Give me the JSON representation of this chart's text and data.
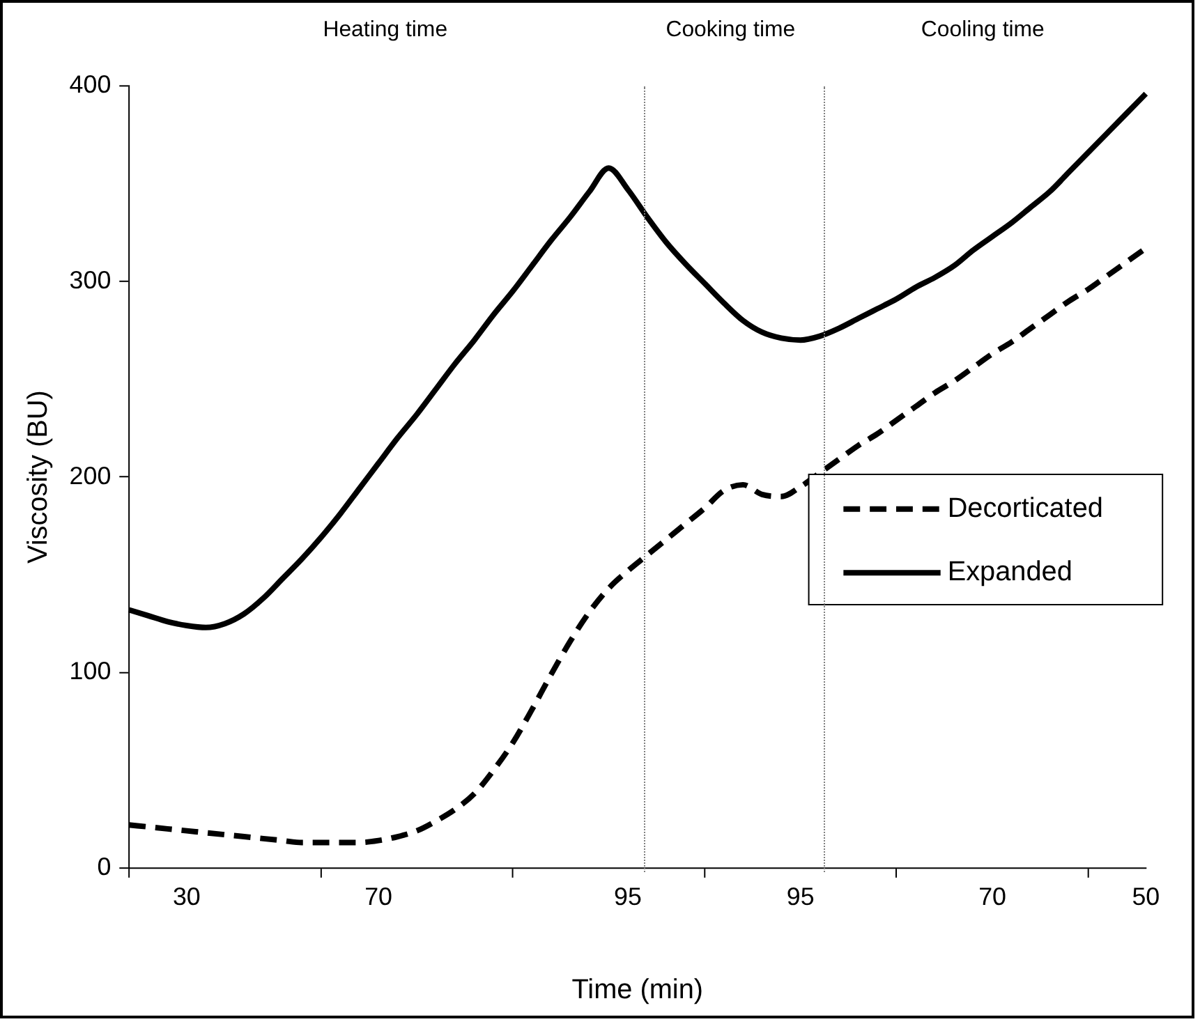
{
  "chart_data": {
    "type": "line",
    "xlabel": "Time (min)",
    "ylabel": "Viscosity (BU)",
    "categories": [
      null,
      null,
      null,
      "30",
      null,
      null,
      null,
      null,
      null,
      null,
      null,
      null,
      null,
      "70",
      null,
      null,
      null,
      null,
      null,
      null,
      null,
      null,
      null,
      null,
      null,
      null,
      "95",
      null,
      null,
      null,
      null,
      null,
      null,
      null,
      null,
      "95",
      null,
      null,
      null,
      null,
      null,
      null,
      null,
      null,
      null,
      "70",
      null,
      null,
      null,
      null,
      null,
      null,
      null,
      "50"
    ],
    "ylim": [
      0,
      400
    ],
    "yticks": [
      0,
      100,
      200,
      300,
      400
    ],
    "series": [
      {
        "name": "Decorticated",
        "color": "#000000",
        "line_style": "dashed",
        "values": [
          22,
          21,
          20,
          19,
          18,
          17,
          16,
          15,
          14,
          13,
          13,
          13,
          13,
          14,
          16,
          19,
          24,
          30,
          38,
          50,
          64,
          81,
          99,
          116,
          131,
          143,
          152,
          160,
          168,
          176,
          184,
          193,
          196,
          191,
          190,
          195,
          202,
          209,
          216,
          222,
          229,
          236,
          243,
          249,
          256,
          263,
          269,
          276,
          283,
          290,
          296,
          303,
          310,
          317
        ]
      },
      {
        "name": "Expanded",
        "color": "#000000",
        "line_style": "solid",
        "values": [
          132,
          129,
          126,
          124,
          123,
          125,
          130,
          138,
          148,
          158,
          169,
          181,
          194,
          207,
          220,
          232,
          245,
          258,
          270,
          283,
          295,
          308,
          321,
          333,
          346,
          358,
          347,
          333,
          320,
          309,
          299,
          289,
          280,
          274,
          271,
          270,
          272,
          276,
          281,
          286,
          291,
          297,
          302,
          308,
          316,
          323,
          330,
          338,
          346,
          356,
          366,
          376,
          386,
          396
        ]
      }
    ],
    "annotations": [
      "Heating time",
      "Cooking time",
      "Cooling time"
    ],
    "grid": false,
    "legend": "right",
    "marker": "none"
  }
}
